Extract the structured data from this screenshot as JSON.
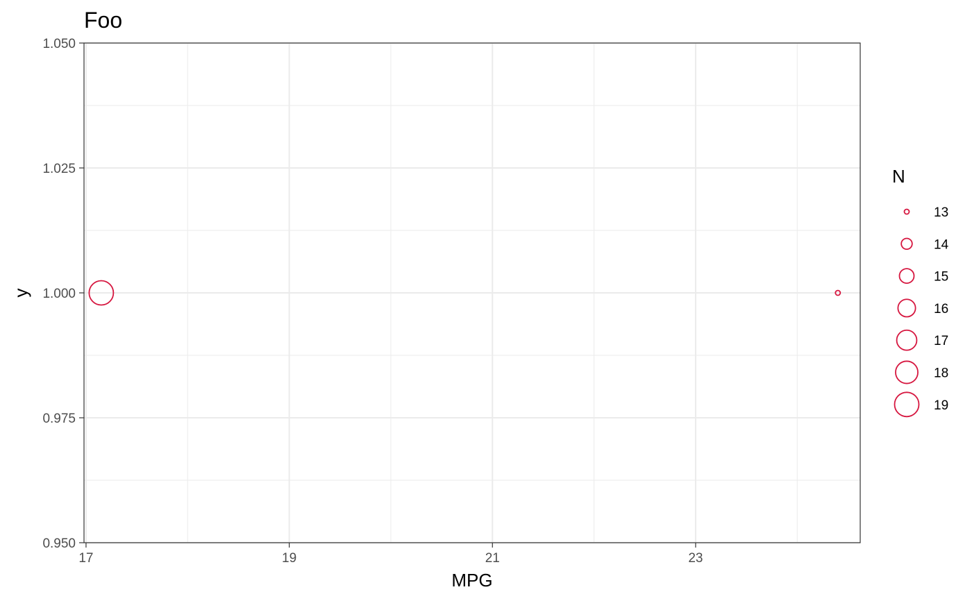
{
  "chart_data": {
    "type": "scatter",
    "title": "Foo",
    "xlabel": "MPG",
    "ylabel": "y",
    "xlim": [
      16.98,
      24.62
    ],
    "ylim": [
      0.95,
      1.05
    ],
    "x_ticks": [
      17,
      19,
      21,
      23
    ],
    "x_tick_labels": [
      "17",
      "19",
      "21",
      "23"
    ],
    "y_ticks": [
      0.95,
      0.975,
      1.0,
      1.025,
      1.05
    ],
    "y_tick_labels": [
      "0.950",
      "0.975",
      "1.000",
      "1.025",
      "1.050"
    ],
    "grid": true,
    "point_color": "#d6163f",
    "points": [
      {
        "x": 17.15,
        "y": 1.0,
        "size": 19
      },
      {
        "x": 24.4,
        "y": 1.0,
        "size": 13
      }
    ],
    "legend": {
      "title": "N",
      "placement": "right",
      "entries": [
        {
          "label": "13",
          "size": 13
        },
        {
          "label": "14",
          "size": 14
        },
        {
          "label": "15",
          "size": 15
        },
        {
          "label": "16",
          "size": 16
        },
        {
          "label": "17",
          "size": 17
        },
        {
          "label": "18",
          "size": 18
        },
        {
          "label": "19",
          "size": 19
        }
      ]
    }
  }
}
